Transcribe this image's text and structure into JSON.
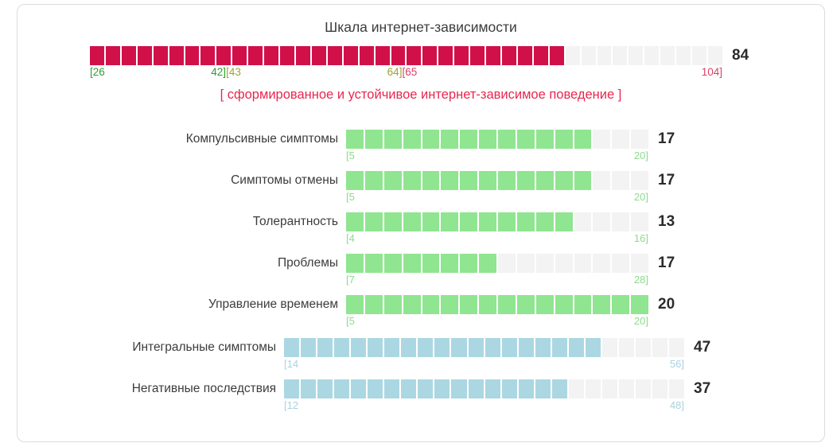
{
  "title": "Шкала интернет-зависимости",
  "colors": {
    "card_border": "#dcdcdc",
    "title_text": "#3c3c3c",
    "label_text": "#3c3c3c",
    "value_text": "#2b2b2b",
    "empty_segment": "#f3f3f3",
    "main_fill": "#d1104a",
    "sub_fill": "#90e591",
    "sub_tick": "#8cdc8c",
    "integral_fill": "#abd7e2",
    "integral_tick": "#a8d2df",
    "interpretation_text": "#e8274f",
    "zone_green": "#2f9d2f",
    "zone_olive": "#a0a033",
    "zone_red": "#dd3f68"
  },
  "main_scale": {
    "value": 84,
    "min": 26,
    "max": 104,
    "segments": 40,
    "filled_segments": 30,
    "zones": [
      {
        "from": 26,
        "to": 42,
        "color_key": "zone_green"
      },
      {
        "from": 43,
        "to": 64,
        "color_key": "zone_olive"
      },
      {
        "from": 65,
        "to": 104,
        "color_key": "zone_red"
      }
    ],
    "interpretation": "[ сформированное и устойчивое интернет-зависимое поведение ]"
  },
  "subscales": [
    {
      "label": "Компульсивные симптомы",
      "value": 17,
      "min": 5,
      "max": 20,
      "segments": 16,
      "filled_segments": 13
    },
    {
      "label": "Симптомы отмены",
      "value": 17,
      "min": 5,
      "max": 20,
      "segments": 16,
      "filled_segments": 13
    },
    {
      "label": "Толерантность",
      "value": 13,
      "min": 4,
      "max": 16,
      "segments": 16,
      "filled_segments": 12
    },
    {
      "label": "Проблемы",
      "value": 17,
      "min": 7,
      "max": 28,
      "segments": 16,
      "filled_segments": 8
    },
    {
      "label": "Управление временем",
      "value": 20,
      "min": 5,
      "max": 20,
      "segments": 16,
      "filled_segments": 16
    }
  ],
  "integral_scales": [
    {
      "label": "Интегральные симптомы",
      "value": 47,
      "min": 14,
      "max": 56,
      "segments": 24,
      "filled_segments": 19
    },
    {
      "label": "Негативные последствия",
      "value": 37,
      "min": 12,
      "max": 48,
      "segments": 24,
      "filled_segments": 17
    }
  ],
  "chart_data": {
    "type": "bar",
    "title": "Шкала интернет-зависимости",
    "annotation": "[ сформированное и устойчивое интернет-зависимое поведение ]",
    "categories": [
      "Шкала интернет-зависимости",
      "Компульсивные симптомы",
      "Симптомы отмены",
      "Толерантность",
      "Проблемы",
      "Управление временем",
      "Интегральные симптомы",
      "Негативные последствия"
    ],
    "values": [
      84,
      17,
      17,
      13,
      17,
      20,
      47,
      37
    ],
    "ranges": [
      [
        26,
        104
      ],
      [
        5,
        20
      ],
      [
        5,
        20
      ],
      [
        4,
        16
      ],
      [
        7,
        28
      ],
      [
        5,
        20
      ],
      [
        14,
        56
      ],
      [
        12,
        48
      ]
    ],
    "main_scale_zones": [
      [
        26,
        42
      ],
      [
        43,
        64
      ],
      [
        65,
        104
      ]
    ],
    "legend_position": "none",
    "grid": false
  }
}
